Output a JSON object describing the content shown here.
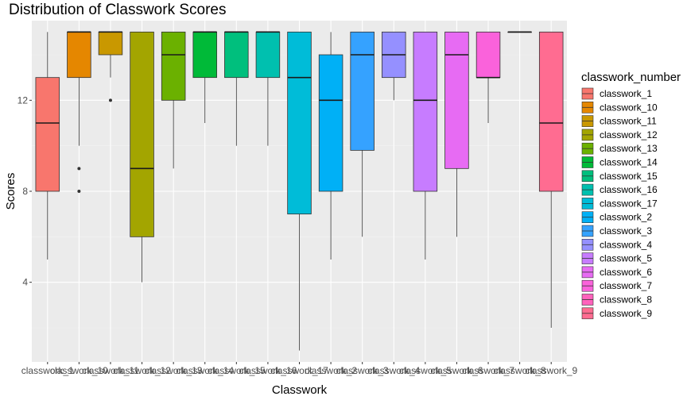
{
  "chart_data": {
    "type": "boxplot",
    "title": "Distribution of Classwork Scores",
    "xlabel": "Classwork",
    "ylabel": "Scores",
    "ylim": [
      0.5,
      15.5
    ],
    "yticks": [
      4,
      8,
      12
    ],
    "grid": true,
    "legend_title": "classwork_number",
    "legend_position": "right",
    "categories": [
      "classwork_1",
      "classwork_10",
      "classwork_11",
      "classwork_12",
      "classwork_13",
      "classwork_14",
      "classwork_15",
      "classwork_16",
      "classwork_17",
      "classwork_2",
      "classwork_3",
      "classwork_4",
      "classwork_5",
      "classwork_6",
      "classwork_7",
      "classwork_8",
      "classwork_9"
    ],
    "series": [
      {
        "name": "classwork_1",
        "color": "#F8766D",
        "min": 5,
        "q1": 8,
        "median": 11,
        "q3": 13,
        "max": 15,
        "outliers": []
      },
      {
        "name": "classwork_10",
        "color": "#E58700",
        "min": 10,
        "q1": 13,
        "median": 15,
        "q3": 15,
        "max": 15,
        "outliers": [
          8,
          9
        ]
      },
      {
        "name": "classwork_11",
        "color": "#C99800",
        "min": 13,
        "q1": 14,
        "median": 15,
        "q3": 15,
        "max": 15,
        "outliers": [
          12
        ]
      },
      {
        "name": "classwork_12",
        "color": "#A3A500",
        "min": 4,
        "q1": 6,
        "median": 9,
        "q3": 15,
        "max": 15,
        "outliers": []
      },
      {
        "name": "classwork_13",
        "color": "#6BB100",
        "min": 9,
        "q1": 12,
        "median": 14,
        "q3": 15,
        "max": 15,
        "outliers": []
      },
      {
        "name": "classwork_14",
        "color": "#00BA38",
        "min": 11,
        "q1": 13,
        "median": 15,
        "q3": 15,
        "max": 15,
        "outliers": []
      },
      {
        "name": "classwork_15",
        "color": "#00BF7D",
        "min": 10,
        "q1": 13,
        "median": 15,
        "q3": 15,
        "max": 15,
        "outliers": []
      },
      {
        "name": "classwork_16",
        "color": "#00C0AF",
        "min": 10,
        "q1": 13,
        "median": 15,
        "q3": 15,
        "max": 15,
        "outliers": []
      },
      {
        "name": "classwork_17",
        "color": "#00BCD8",
        "min": 1,
        "q1": 7,
        "median": 13,
        "q3": 15,
        "max": 15,
        "outliers": []
      },
      {
        "name": "classwork_2",
        "color": "#00B0F6",
        "min": 5,
        "q1": 8,
        "median": 12,
        "q3": 14,
        "max": 15,
        "outliers": []
      },
      {
        "name": "classwork_3",
        "color": "#35A2FF",
        "min": 6,
        "q1": 9.8,
        "median": 14,
        "q3": 15,
        "max": 15,
        "outliers": []
      },
      {
        "name": "classwork_4",
        "color": "#9590FF",
        "min": 12,
        "q1": 13,
        "median": 14,
        "q3": 15,
        "max": 15,
        "outliers": []
      },
      {
        "name": "classwork_5",
        "color": "#C77CFF",
        "min": 5,
        "q1": 8,
        "median": 12,
        "q3": 15,
        "max": 15,
        "outliers": []
      },
      {
        "name": "classwork_6",
        "color": "#E76BF3",
        "min": 6,
        "q1": 9,
        "median": 14,
        "q3": 15,
        "max": 15,
        "outliers": []
      },
      {
        "name": "classwork_7",
        "color": "#FA62DB",
        "min": 11,
        "q1": 13,
        "median": 13,
        "q3": 15,
        "max": 15,
        "outliers": []
      },
      {
        "name": "classwork_8",
        "color": "#FF62BC",
        "min": 15,
        "q1": 15,
        "median": 15,
        "q3": 15,
        "max": 15,
        "outliers": []
      },
      {
        "name": "classwork_9",
        "color": "#FF6C91",
        "min": 2,
        "q1": 8,
        "median": 11,
        "q3": 15,
        "max": 15,
        "outliers": []
      }
    ]
  },
  "colors": {
    "panel_background": "#EBEBEB",
    "grid_major": "#FFFFFF",
    "grid_minor": "#F2F2F2"
  }
}
